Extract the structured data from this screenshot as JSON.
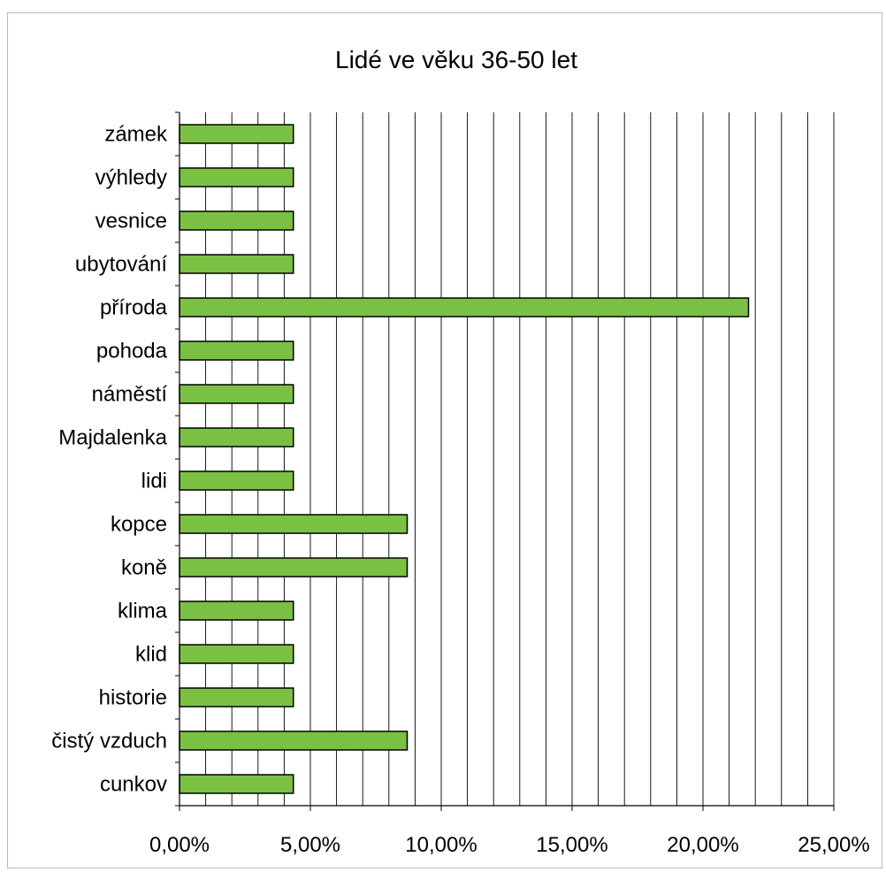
{
  "chart_data": {
    "type": "bar",
    "orientation": "horizontal",
    "title": "Lidé ve věku 36-50 let",
    "xlabel": "",
    "ylabel": "",
    "categories": [
      "zámek",
      "výhledy",
      "vesnice",
      "ubytování",
      "příroda",
      "pohoda",
      "náměstí",
      "Majdalenka",
      "lidi",
      "kopce",
      "koně",
      "klima",
      "klid",
      "historie",
      "čistý vzduch",
      "cunkov"
    ],
    "values": [
      4.35,
      4.35,
      4.35,
      4.35,
      21.74,
      4.35,
      4.35,
      4.35,
      4.35,
      8.7,
      8.7,
      4.35,
      4.35,
      4.35,
      8.7,
      4.35
    ],
    "xlim": [
      0,
      25
    ],
    "x_ticks": [
      0,
      5,
      10,
      15,
      20,
      25
    ],
    "x_tick_labels": [
      "0,00%",
      "5,00%",
      "10,00%",
      "15,00%",
      "20,00%",
      "25,00%"
    ],
    "grid": "vertical",
    "legend": "none",
    "bar_color": "#7ac143",
    "bar_edge_color": "#000000"
  }
}
